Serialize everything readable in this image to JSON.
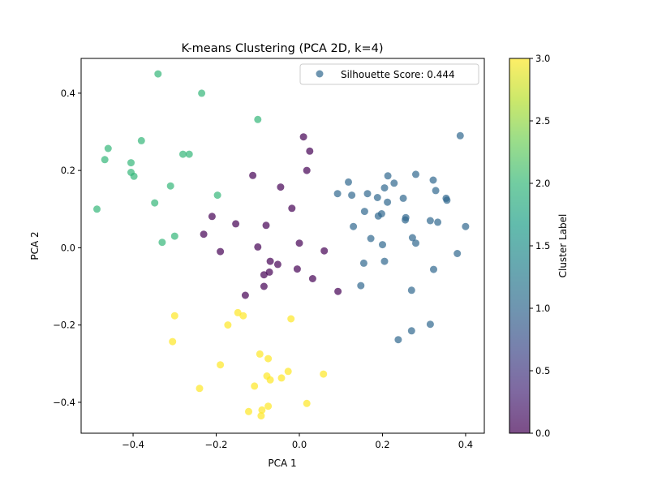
{
  "chart_data": {
    "type": "scatter",
    "title": "K-means Clustering (PCA 2D, k=4)",
    "xlabel": "PCA 1",
    "ylabel": "PCA 2",
    "xlim": [
      -0.525,
      0.445
    ],
    "ylim": [
      -0.48,
      0.49
    ],
    "xticks": [
      -0.4,
      -0.2,
      0.0,
      0.2,
      0.4
    ],
    "xtick_labels": [
      "−0.4",
      "−0.2",
      "0.0",
      "0.2",
      "0.4"
    ],
    "yticks": [
      -0.4,
      -0.2,
      0.0,
      0.2,
      0.4
    ],
    "ytick_labels": [
      "−0.4",
      "−0.2",
      "0.0",
      "0.2",
      "0.4"
    ],
    "grid": false,
    "legend": {
      "placement": "top-right",
      "label": "Silhouette Score: 0.444"
    },
    "colorbar": {
      "label": "Cluster Label",
      "range": [
        0,
        3
      ],
      "ticks": [
        0.0,
        0.5,
        1.0,
        1.5,
        2.0,
        2.5,
        3.0
      ],
      "tick_labels": [
        "0.0",
        "0.5",
        "1.0",
        "1.5",
        "2.0",
        "2.5",
        "3.0"
      ],
      "colormap": "viridis",
      "stops": [
        "#440154",
        "#482878",
        "#3e4989",
        "#31688e",
        "#26828e",
        "#1f9e89",
        "#35b779",
        "#6ece58",
        "#b5de2b",
        "#fde725"
      ]
    },
    "cluster_colors": [
      "#440154",
      "#31688e",
      "#35b779",
      "#fde725"
    ],
    "point_alpha": 0.7,
    "points": [
      [
        -0.34,
        0.45,
        2
      ],
      [
        -0.235,
        0.4,
        2
      ],
      [
        -0.1,
        0.332,
        2
      ],
      [
        -0.38,
        0.277,
        2
      ],
      [
        -0.46,
        0.257,
        2
      ],
      [
        -0.468,
        0.228,
        2
      ],
      [
        -0.28,
        0.242,
        2
      ],
      [
        -0.265,
        0.242,
        2
      ],
      [
        -0.405,
        0.22,
        2
      ],
      [
        -0.405,
        0.195,
        2
      ],
      [
        -0.398,
        0.185,
        2
      ],
      [
        -0.31,
        0.16,
        2
      ],
      [
        -0.197,
        0.136,
        2
      ],
      [
        -0.348,
        0.116,
        2
      ],
      [
        -0.487,
        0.1,
        2
      ],
      [
        -0.3,
        0.03,
        2
      ],
      [
        -0.33,
        0.014,
        2
      ],
      [
        0.01,
        0.287,
        0
      ],
      [
        0.025,
        0.25,
        0
      ],
      [
        0.018,
        0.2,
        0
      ],
      [
        -0.112,
        0.187,
        0
      ],
      [
        -0.045,
        0.157,
        0
      ],
      [
        -0.018,
        0.102,
        0
      ],
      [
        -0.21,
        0.081,
        0
      ],
      [
        -0.153,
        0.062,
        0
      ],
      [
        -0.08,
        0.058,
        0
      ],
      [
        -0.23,
        0.035,
        0
      ],
      [
        0.0,
        0.012,
        0
      ],
      [
        -0.1,
        0.002,
        0
      ],
      [
        -0.19,
        -0.01,
        0
      ],
      [
        0.06,
        -0.008,
        0
      ],
      [
        -0.07,
        -0.035,
        0
      ],
      [
        -0.052,
        -0.043,
        0
      ],
      [
        -0.005,
        -0.055,
        0
      ],
      [
        -0.072,
        -0.063,
        0
      ],
      [
        -0.085,
        -0.07,
        0
      ],
      [
        0.032,
        -0.08,
        0
      ],
      [
        -0.085,
        -0.1,
        0
      ],
      [
        0.093,
        -0.113,
        0
      ],
      [
        -0.13,
        -0.123,
        0
      ],
      [
        0.387,
        0.29,
        1
      ],
      [
        0.28,
        0.19,
        1
      ],
      [
        0.213,
        0.186,
        1
      ],
      [
        0.322,
        0.175,
        1
      ],
      [
        0.118,
        0.17,
        1
      ],
      [
        0.228,
        0.167,
        1
      ],
      [
        0.205,
        0.155,
        1
      ],
      [
        0.328,
        0.148,
        1
      ],
      [
        0.092,
        0.14,
        1
      ],
      [
        0.164,
        0.14,
        1
      ],
      [
        0.126,
        0.136,
        1
      ],
      [
        0.188,
        0.13,
        1
      ],
      [
        0.25,
        0.128,
        1
      ],
      [
        0.353,
        0.128,
        1
      ],
      [
        0.355,
        0.123,
        1
      ],
      [
        0.212,
        0.118,
        1
      ],
      [
        0.157,
        0.094,
        1
      ],
      [
        0.198,
        0.088,
        1
      ],
      [
        0.19,
        0.082,
        1
      ],
      [
        0.256,
        0.078,
        1
      ],
      [
        0.255,
        0.072,
        1
      ],
      [
        0.315,
        0.07,
        1
      ],
      [
        0.333,
        0.066,
        1
      ],
      [
        0.4,
        0.055,
        1
      ],
      [
        0.13,
        0.055,
        1
      ],
      [
        0.272,
        0.026,
        1
      ],
      [
        0.172,
        0.024,
        1
      ],
      [
        0.28,
        0.012,
        1
      ],
      [
        0.2,
        0.008,
        1
      ],
      [
        0.38,
        -0.015,
        1
      ],
      [
        0.205,
        -0.035,
        1
      ],
      [
        0.155,
        -0.04,
        1
      ],
      [
        0.323,
        -0.056,
        1
      ],
      [
        0.148,
        -0.098,
        1
      ],
      [
        0.27,
        -0.11,
        1
      ],
      [
        0.315,
        -0.198,
        1
      ],
      [
        0.27,
        -0.215,
        1
      ],
      [
        0.238,
        -0.238,
        1
      ],
      [
        -0.3,
        -0.176,
        3
      ],
      [
        -0.148,
        -0.168,
        3
      ],
      [
        -0.135,
        -0.176,
        3
      ],
      [
        -0.02,
        -0.184,
        3
      ],
      [
        -0.172,
        -0.2,
        3
      ],
      [
        -0.305,
        -0.243,
        3
      ],
      [
        -0.095,
        -0.275,
        3
      ],
      [
        -0.075,
        -0.287,
        3
      ],
      [
        -0.19,
        -0.303,
        3
      ],
      [
        -0.027,
        -0.32,
        3
      ],
      [
        0.058,
        -0.327,
        3
      ],
      [
        -0.078,
        -0.332,
        3
      ],
      [
        -0.043,
        -0.337,
        3
      ],
      [
        -0.07,
        -0.342,
        3
      ],
      [
        -0.108,
        -0.358,
        3
      ],
      [
        -0.24,
        -0.364,
        3
      ],
      [
        0.018,
        -0.403,
        3
      ],
      [
        -0.075,
        -0.41,
        3
      ],
      [
        -0.09,
        -0.42,
        3
      ],
      [
        -0.122,
        -0.424,
        3
      ],
      [
        -0.092,
        -0.435,
        3
      ]
    ]
  }
}
